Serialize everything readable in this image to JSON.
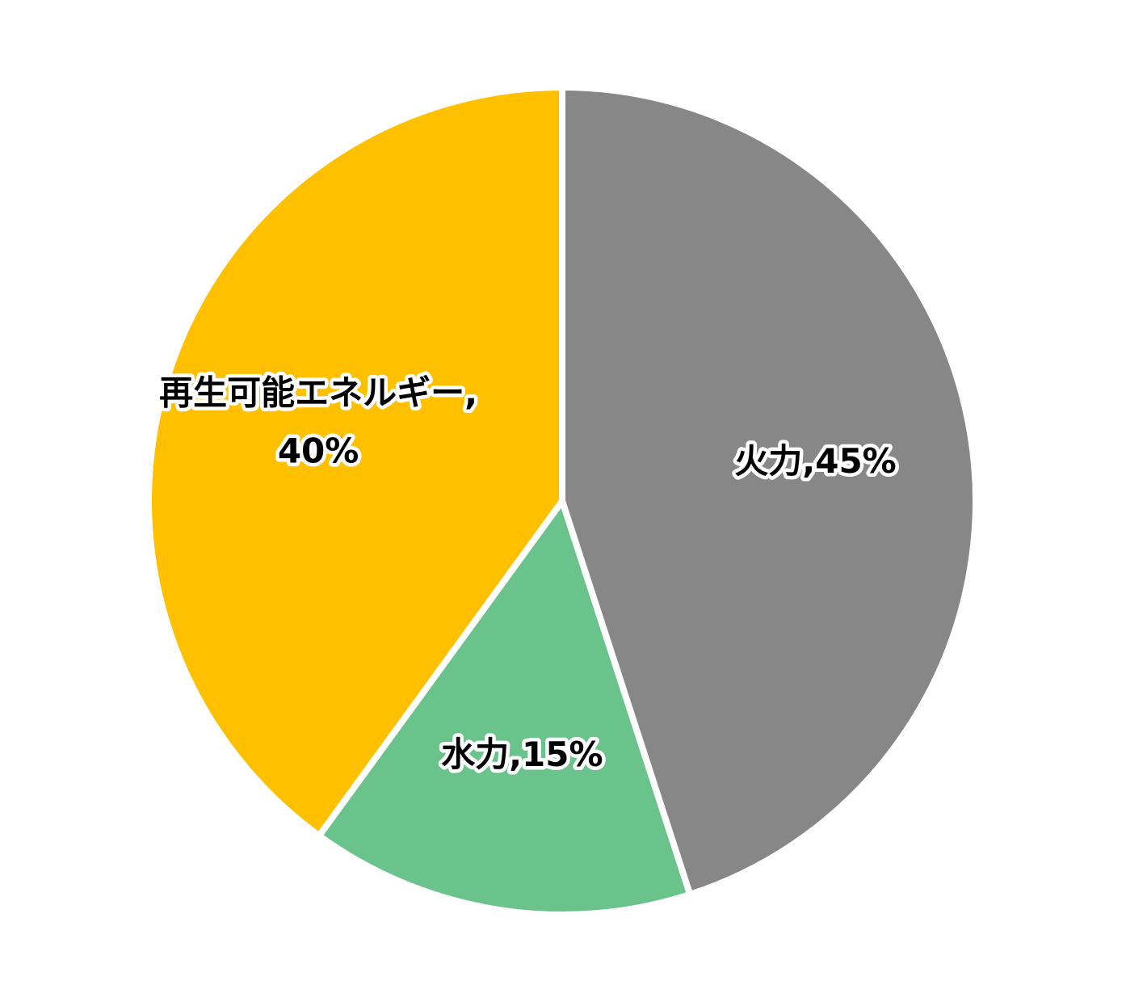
{
  "chart_data": {
    "type": "pie",
    "title": "",
    "start_angle_deg": 0,
    "direction": "clockwise",
    "slices": [
      {
        "name": "火力",
        "value": 45,
        "color": "#878787",
        "label_lines": [
          "火力,45%"
        ]
      },
      {
        "name": "水力",
        "value": 15,
        "color": "#69C38B",
        "label_lines": [
          "水力,15%"
        ]
      },
      {
        "name": "再生可能エネルギー",
        "value": 40,
        "color": "#FFC000",
        "label_lines": [
          "再生可能エネルギー,",
          "40%"
        ]
      }
    ],
    "background_color": "#FFFFFF",
    "legend": "none"
  }
}
